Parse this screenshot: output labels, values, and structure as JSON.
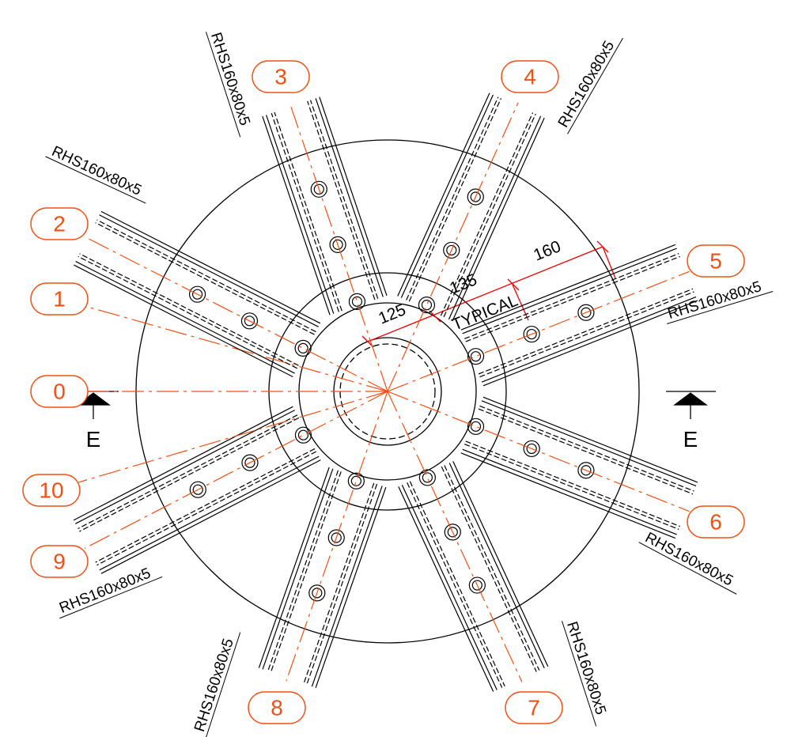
{
  "labels": [
    "0",
    "1",
    "2",
    "3",
    "4",
    "5",
    "6",
    "7",
    "8",
    "9",
    "10"
  ],
  "sections": [
    "RHS160x80x5",
    "RHS160x80x5",
    "RHS160x80x5",
    "RHS160x80x5",
    "RHS160x80x5",
    "RHS160x80x5",
    "RHS160x80x5",
    "RHS160x80x5"
  ],
  "dimensions": [
    "125",
    "135",
    "160"
  ],
  "note": "TYPICAL",
  "section_marks": [
    "E",
    "E"
  ]
}
